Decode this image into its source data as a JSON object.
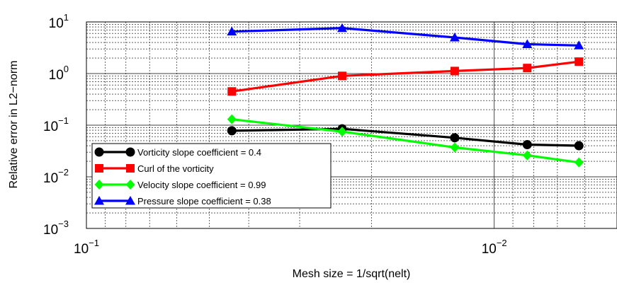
{
  "chart_data": {
    "type": "line",
    "xscale": "log",
    "yscale": "log",
    "x_reversed": true,
    "xlim": [
      0.1,
      0.005
    ],
    "ylim": [
      0.001,
      10
    ],
    "grid": true,
    "legend_position": "bottom-left",
    "xlabel": "Mesh size = 1/sqrt(nelt)",
    "ylabel": "Relative error in L2−norm",
    "x_ticks": [
      {
        "base": "10",
        "exp": "−1"
      },
      {
        "base": "10",
        "exp": "−2"
      }
    ],
    "y_ticks": [
      {
        "base": "10",
        "exp": "1"
      },
      {
        "base": "10",
        "exp": "0"
      },
      {
        "base": "10",
        "exp": "−1"
      },
      {
        "base": "10",
        "exp": "−2"
      },
      {
        "base": "10",
        "exp": "−3"
      }
    ],
    "x": [
      0.044,
      0.0236,
      0.0125,
      0.0083,
      0.0062
    ],
    "series": [
      {
        "name": "Vorticity slope coefficient = 0.4",
        "color": "#000000",
        "marker": "circle",
        "values": [
          0.078,
          0.085,
          0.057,
          0.042,
          0.04
        ]
      },
      {
        "name": "Curl of the vorticity",
        "color": "#ff0000",
        "marker": "square",
        "values": [
          0.45,
          0.9,
          1.12,
          1.28,
          1.7
        ]
      },
      {
        "name": "Velocity slope coefficient = 0.99",
        "color": "#00ff00",
        "marker": "diamond",
        "values": [
          0.13,
          0.075,
          0.037,
          0.026,
          0.019
        ]
      },
      {
        "name": "Pressure slope coefficient = 0.38",
        "color": "#0000ff",
        "marker": "triangle",
        "values": [
          6.5,
          7.6,
          5.0,
          3.7,
          3.5
        ]
      }
    ]
  }
}
